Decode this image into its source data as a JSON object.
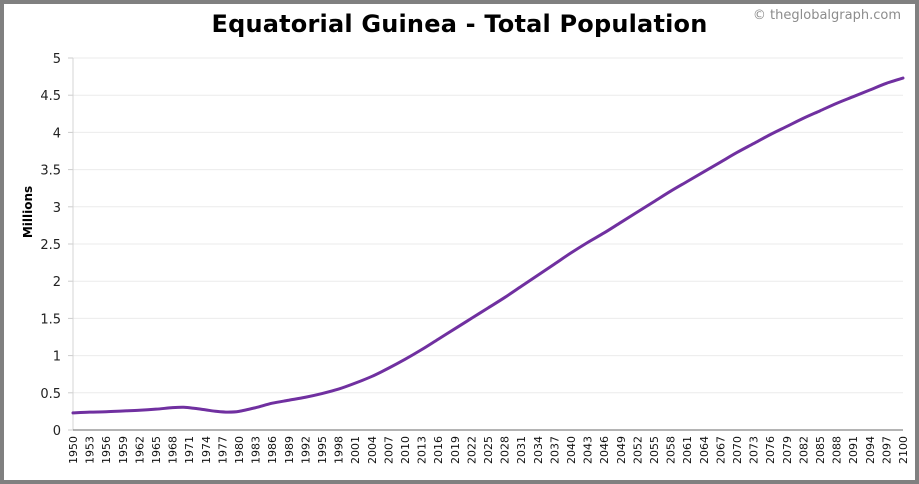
{
  "header": {
    "title": "Equatorial Guinea - Total Population",
    "credit": "© theglobalgraph.com"
  },
  "colors": {
    "line": "#7030a0",
    "grid": "#ebebeb",
    "axis": "#888888",
    "frame": "#808080"
  },
  "chart_data": {
    "type": "line",
    "title": "Equatorial Guinea - Total Population",
    "xlabel": "",
    "ylabel": "Millions",
    "ylim": [
      0,
      5
    ],
    "yticks": [
      0,
      0.5,
      1,
      1.5,
      2,
      2.5,
      3,
      3.5,
      4,
      4.5,
      5
    ],
    "ytick_labels": [
      "0",
      "0.5",
      "1",
      "1.5",
      "2",
      "2.5",
      "3",
      "3.5",
      "4",
      "4.5",
      "5"
    ],
    "xlim": [
      1950,
      2100
    ],
    "xtick_labels": [
      "1950",
      "1953",
      "1956",
      "1959",
      "1962",
      "1965",
      "1968",
      "1971",
      "1974",
      "1977",
      "1980",
      "1983",
      "1986",
      "1989",
      "1992",
      "1995",
      "1998",
      "2001",
      "2004",
      "2007",
      "2010",
      "2013",
      "2016",
      "2019",
      "2022",
      "2025",
      "2028",
      "2031",
      "2034",
      "2037",
      "2040",
      "2043",
      "2046",
      "2049",
      "2052",
      "2055",
      "2058",
      "2061",
      "2064",
      "2067",
      "2070",
      "2073",
      "2076",
      "2079",
      "2082",
      "2085",
      "2088",
      "2091",
      "2094",
      "2097",
      "2100"
    ],
    "grid": true,
    "legend": "none",
    "series": [
      {
        "name": "Total Population (Millions)",
        "x": [
          1950,
          1953,
          1956,
          1959,
          1962,
          1965,
          1968,
          1970,
          1972,
          1974,
          1976,
          1978,
          1980,
          1983,
          1986,
          1989,
          1992,
          1995,
          1998,
          2001,
          2004,
          2007,
          2010,
          2013,
          2016,
          2019,
          2022,
          2025,
          2028,
          2031,
          2034,
          2037,
          2040,
          2043,
          2046,
          2049,
          2052,
          2055,
          2058,
          2061,
          2064,
          2067,
          2070,
          2073,
          2076,
          2079,
          2082,
          2085,
          2088,
          2091,
          2094,
          2097,
          2100
        ],
        "values": [
          0.23,
          0.24,
          0.245,
          0.255,
          0.265,
          0.28,
          0.3,
          0.305,
          0.29,
          0.27,
          0.25,
          0.24,
          0.25,
          0.3,
          0.36,
          0.4,
          0.44,
          0.49,
          0.55,
          0.63,
          0.72,
          0.83,
          0.95,
          1.08,
          1.22,
          1.36,
          1.5,
          1.64,
          1.78,
          1.93,
          2.08,
          2.23,
          2.38,
          2.52,
          2.65,
          2.79,
          2.93,
          3.07,
          3.21,
          3.34,
          3.47,
          3.6,
          3.73,
          3.85,
          3.97,
          4.08,
          4.19,
          4.29,
          4.39,
          4.48,
          4.57,
          4.66,
          4.73
        ]
      }
    ]
  }
}
